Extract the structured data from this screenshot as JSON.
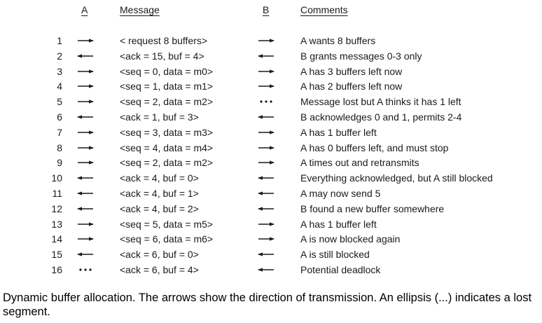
{
  "headers": {
    "a": "A",
    "message": "Message",
    "b": "B",
    "comments": "Comments"
  },
  "rows": [
    {
      "num": "1",
      "a_arrow": "right",
      "message": "< request 8 buffers>",
      "b_arrow": "right",
      "comment": "A wants 8 buffers"
    },
    {
      "num": "2",
      "a_arrow": "left",
      "message": "<ack = 15, buf = 4>",
      "b_arrow": "left",
      "comment": "B grants messages 0-3 only"
    },
    {
      "num": "3",
      "a_arrow": "right",
      "message": "<seq = 0, data = m0>",
      "b_arrow": "right",
      "comment": "A has 3 buffers left now"
    },
    {
      "num": "4",
      "a_arrow": "right",
      "message": "<seq = 1, data = m1>",
      "b_arrow": "right",
      "comment": "A has 2 buffers left now"
    },
    {
      "num": "5",
      "a_arrow": "right",
      "message": "<seq = 2, data = m2>",
      "b_arrow": "lost",
      "comment": "Message lost but A thinks it has 1 left"
    },
    {
      "num": "6",
      "a_arrow": "left",
      "message": "<ack = 1, buf = 3>",
      "b_arrow": "left",
      "comment": "B acknowledges 0 and 1, permits 2-4"
    },
    {
      "num": "7",
      "a_arrow": "right",
      "message": "<seq = 3, data = m3>",
      "b_arrow": "right",
      "comment": "A has 1 buffer left"
    },
    {
      "num": "8",
      "a_arrow": "right",
      "message": "<seq = 4, data = m4>",
      "b_arrow": "right",
      "comment": "A has 0 buffers left, and must stop"
    },
    {
      "num": "9",
      "a_arrow": "right",
      "message": "<seq = 2, data = m2>",
      "b_arrow": "right",
      "comment": "A times out and retransmits"
    },
    {
      "num": "10",
      "a_arrow": "left",
      "message": "<ack = 4, buf = 0>",
      "b_arrow": "left",
      "comment": "Everything acknowledged, but A still blocked"
    },
    {
      "num": "11",
      "a_arrow": "left",
      "message": "<ack = 4, buf = 1>",
      "b_arrow": "left",
      "comment": "A may now send 5"
    },
    {
      "num": "12",
      "a_arrow": "left",
      "message": "<ack = 4, buf = 2>",
      "b_arrow": "left",
      "comment": "B found a new buffer somewhere"
    },
    {
      "num": "13",
      "a_arrow": "right",
      "message": "<seq = 5, data = m5>",
      "b_arrow": "right",
      "comment": "A has 1 buffer left"
    },
    {
      "num": "14",
      "a_arrow": "right",
      "message": "<seq = 6, data = m6>",
      "b_arrow": "right",
      "comment": "A is now blocked again"
    },
    {
      "num": "15",
      "a_arrow": "left",
      "message": "<ack = 6, buf = 0>",
      "b_arrow": "left",
      "comment": "A is still blocked"
    },
    {
      "num": "16",
      "a_arrow": "lost",
      "message": "<ack = 6, buf = 4>",
      "b_arrow": "left",
      "comment": "Potential deadlock"
    }
  ],
  "caption": "Dynamic buffer allocation. The arrows show the direction of transmission. An ellipsis (...) indicates a lost segment.",
  "colors": {
    "text": "#1a1a1a",
    "arrow": "#1a1a1a",
    "background": "#ffffff"
  },
  "icons": {
    "right": "right-arrow-icon",
    "left": "left-arrow-icon",
    "lost": "ellipsis-icon"
  }
}
